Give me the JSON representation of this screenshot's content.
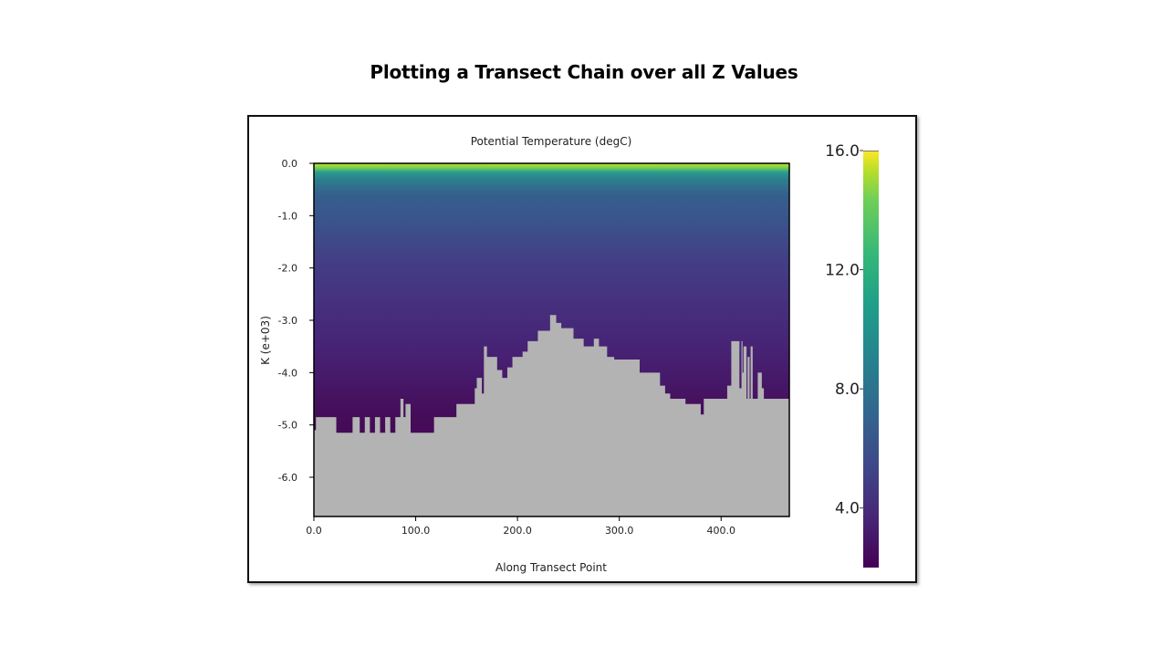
{
  "slide": {
    "title": "Plotting a Transect Chain over all Z Values"
  },
  "chart_data": {
    "type": "heatmap",
    "title": "Potential Temperature (degC)",
    "xlabel": "Along Transect Point",
    "ylabel": "K (e+03)",
    "xlim": [
      0,
      467
    ],
    "ylim": [
      -6.75,
      0
    ],
    "xticks": [
      0,
      100,
      200,
      300,
      400
    ],
    "xtick_labels": [
      "0.0",
      "100.0",
      "200.0",
      "300.0",
      "400.0"
    ],
    "yticks": [
      0,
      -1,
      -2,
      -3,
      -4,
      -5,
      -6
    ],
    "ytick_labels": [
      "0.0",
      "-1.0",
      "-2.0",
      "-3.0",
      "-4.0",
      "-5.0",
      "-6.0"
    ],
    "colorbar": {
      "min": 2,
      "max": 16,
      "ticks": [
        4,
        8,
        12,
        16
      ],
      "tick_labels": [
        "4.0",
        "8.0",
        "12.0",
        "16.0"
      ],
      "colormap": "viridis"
    },
    "surface_warm_zones": [
      [
        10,
        230
      ],
      [
        300,
        435
      ]
    ],
    "mask_color": "#b3b3b3",
    "bathymetry": {
      "x": [
        0,
        2,
        22,
        38,
        45,
        50,
        55,
        60,
        65,
        70,
        75,
        80,
        85,
        88,
        90,
        95,
        100,
        105,
        118,
        130,
        140,
        158,
        160,
        165,
        167,
        170,
        180,
        185,
        190,
        195,
        205,
        210,
        220,
        232,
        238,
        243,
        255,
        265,
        275,
        280,
        283,
        288,
        295,
        305,
        310,
        315,
        320,
        330,
        340,
        345,
        350,
        355,
        365,
        375,
        380,
        383,
        390,
        395,
        402,
        406,
        410,
        418,
        420,
        421,
        422,
        425,
        426,
        428,
        429,
        431,
        432,
        433,
        435,
        436,
        440,
        442,
        445,
        450,
        467
      ],
      "y": [
        -5.1,
        -4.85,
        -5.15,
        -4.85,
        -5.15,
        -4.85,
        -5.15,
        -4.85,
        -5.15,
        -4.85,
        -5.15,
        -4.85,
        -4.5,
        -4.85,
        -4.6,
        -5.15,
        -5.15,
        -5.15,
        -4.85,
        -4.85,
        -4.6,
        -4.3,
        -4.1,
        -4.4,
        -3.5,
        -3.7,
        -3.95,
        -4.1,
        -3.9,
        -3.7,
        -3.6,
        -3.4,
        -3.2,
        -2.9,
        -3.05,
        -3.15,
        -3.35,
        -3.5,
        -3.35,
        -3.5,
        -3.5,
        -3.7,
        -3.75,
        -3.75,
        -3.75,
        -3.75,
        -4.0,
        -4.0,
        -4.25,
        -4.4,
        -4.5,
        -4.5,
        -4.6,
        -4.6,
        -4.8,
        -4.5,
        -4.5,
        -4.5,
        -4.5,
        -4.25,
        -3.4,
        -4.3,
        -3.4,
        -4.0,
        -3.5,
        -4.5,
        -3.7,
        -4.5,
        -3.5,
        -4.5,
        -4.5,
        -4.5,
        -4.5,
        -4.0,
        -4.3,
        -4.5,
        -4.5,
        -4.5,
        -4.5
      ]
    }
  }
}
